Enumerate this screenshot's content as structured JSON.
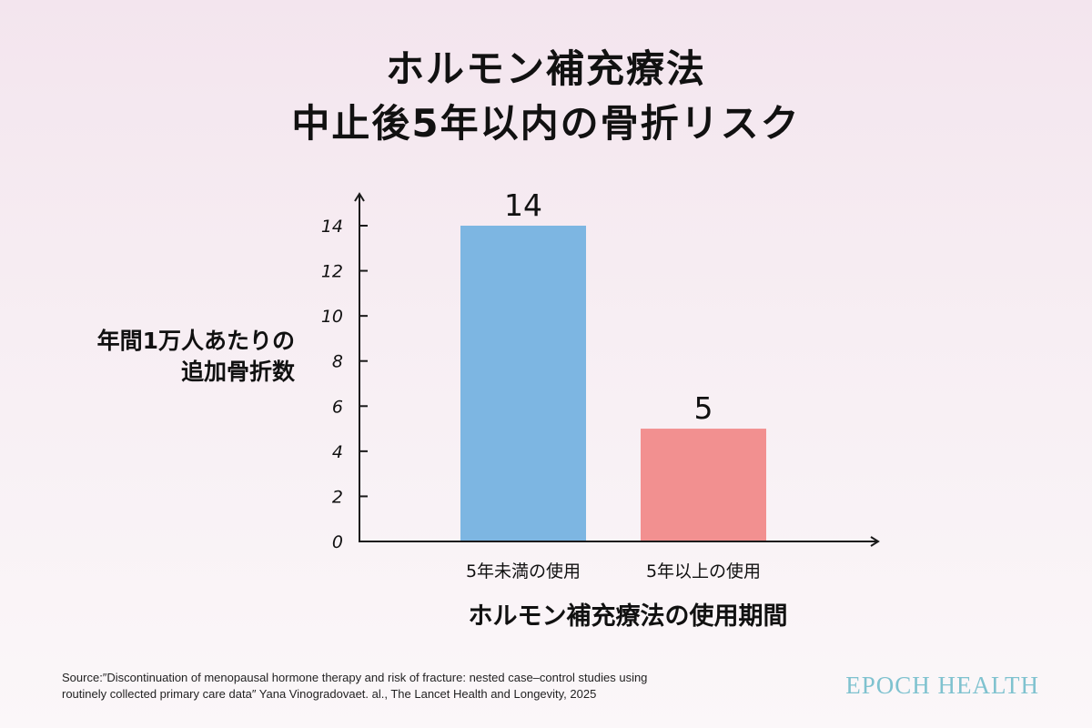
{
  "title": {
    "line1": "ホルモン補充療法",
    "line2": "中止後5年以内の骨折リスク"
  },
  "chart_data": {
    "type": "bar",
    "categories": [
      "5年未満の使用",
      "5年以上の使用"
    ],
    "values": [
      14,
      5
    ],
    "data_labels": [
      "14",
      "5"
    ],
    "bar_colors": [
      "#7db6e2",
      "#f29090"
    ],
    "title": "ホルモン補充療法 中止後5年以内の骨折リスク",
    "ylabel_lines": [
      "年間1万人あたりの",
      "追加骨折数"
    ],
    "xlabel": "ホルモン補充療法の使用期間",
    "ylim": [
      0,
      14
    ],
    "yticks": [
      0,
      2,
      4,
      6,
      8,
      10,
      12,
      14
    ],
    "grid": false,
    "legend": "none"
  },
  "footer": {
    "source_line1": "Source:″Discontinuation of menopausal hormone therapy and risk of fracture: nested case–control studies using",
    "source_line2": "routinely collected primary care data″ Yana Vinogradovaet. al., The Lancet Health and Longevity, 2025",
    "brand": "EPOCH HEALTH"
  },
  "colors": {
    "axis": "#1a1a1a",
    "brand": "#7fc2cf"
  }
}
